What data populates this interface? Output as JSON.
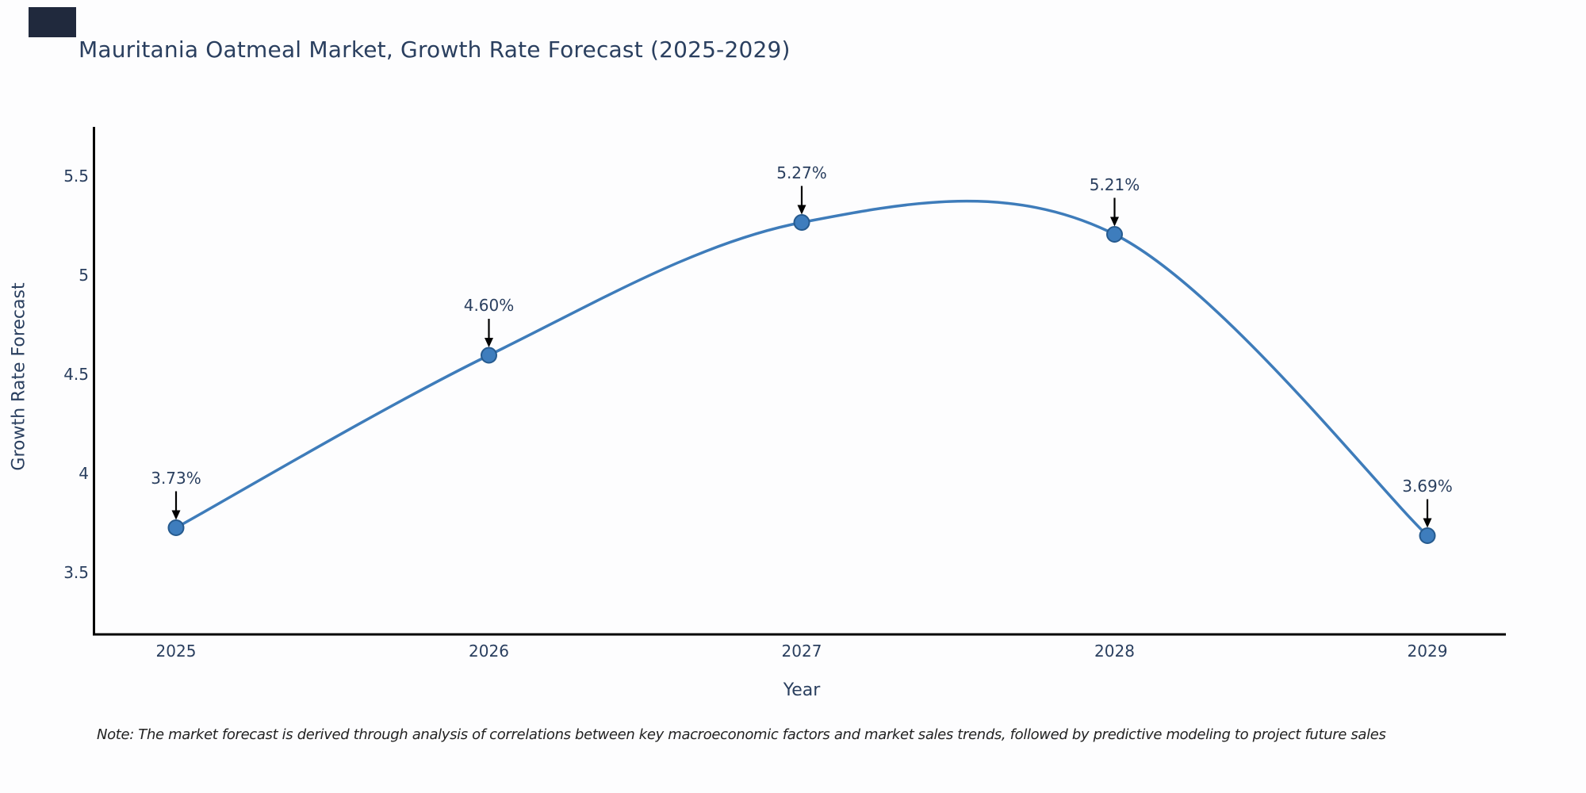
{
  "header": {
    "title": "Mauritania Oatmeal Market, Growth Rate Forecast (2025-2029)"
  },
  "corner_artifact": {
    "color": "#20293d"
  },
  "chart_data": {
    "type": "line",
    "line_shape": "spline",
    "title": "Mauritania Oatmeal Market, Growth Rate Forecast (2025-2029)",
    "xlabel": "Year",
    "ylabel": "Growth Rate Forecast",
    "categories": [
      "2025",
      "2026",
      "2027",
      "2028",
      "2029"
    ],
    "values": [
      3.73,
      4.6,
      5.27,
      5.21,
      3.69
    ],
    "point_labels": [
      "3.73%",
      "4.60%",
      "5.27%",
      "5.21%",
      "3.69%"
    ],
    "y_ticks": [
      3.5,
      4,
      4.5,
      5,
      5.5
    ],
    "y_tick_labels": [
      "3.5",
      "4",
      "4.5",
      "5",
      "5.5"
    ],
    "ylim": [
      3.19,
      5.75
    ],
    "grid": false,
    "legend": "none",
    "annotations_style": "value label with black down-arrow above each marker",
    "colors": {
      "line": "#3e7cba",
      "marker_fill": "#3e7dbd",
      "marker_edge": "#265a8e",
      "arrow": "#000000",
      "text": "#2a3f5f",
      "axis": "#000000",
      "background": "#fdfdfe"
    }
  },
  "footnote": {
    "text": "Note: The market forecast is derived through analysis of correlations between key macroeconomic factors and market sales trends, followed by predictive modeling to project future sales"
  }
}
